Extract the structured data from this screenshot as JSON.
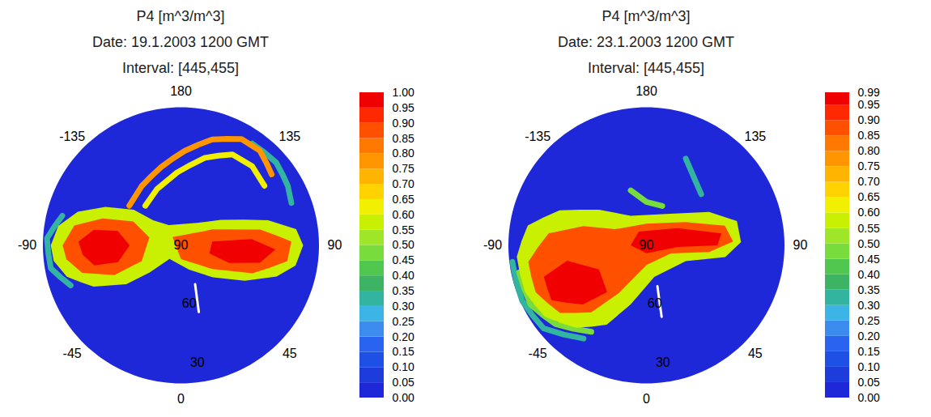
{
  "chart_data": [
    {
      "type": "map",
      "title": "P4 [m^3/m^3]",
      "date": "Date: 19.1.2003 1200 GMT",
      "interval": "Interval: [445,455]",
      "lat_range": [
        20,
        90
      ],
      "lon_labels": [
        180,
        135,
        90,
        45,
        0,
        -45,
        -90,
        -135
      ],
      "lat_labels": [
        90,
        60,
        30
      ],
      "background": 0.02,
      "regions": [
        {
          "value": 0.55,
          "coordinates": [
            [
              -90,
              24
            ],
            [
              -99,
              27
            ],
            [
              -108,
              35
            ],
            [
              -117,
              47
            ],
            [
              -127,
              60
            ],
            [
              -132,
              71
            ],
            [
              -149,
              78
            ],
            [
              144.5,
              76
            ],
            [
              122.6,
              66
            ],
            [
              106,
              44
            ],
            [
              98,
              31
            ],
            [
              90,
              28
            ],
            [
              80,
              31
            ],
            [
              72,
              39
            ],
            [
              61,
              53
            ],
            [
              45,
              67
            ],
            [
              18.4,
              77
            ],
            [
              -40,
              81
            ],
            [
              -49,
              69
            ],
            [
              -54.5,
              56
            ],
            [
              -64.7,
              41
            ],
            [
              -74.6,
              30
            ],
            [
              -83,
              25
            ]
          ]
        },
        {
          "value": 0.85,
          "coordinates": [
            [
              -90,
              30
            ],
            [
              -100.5,
              35
            ],
            [
              -109,
              48
            ],
            [
              -116.6,
              63
            ],
            [
              -104,
              73.5
            ],
            [
              -68,
              68.5
            ],
            [
              -66,
              53
            ],
            [
              -74.4,
              38
            ],
            [
              -83,
              31.5
            ]
          ]
        },
        {
          "value": 0.85,
          "coordinates": [
            [
              -135,
              84
            ],
            [
              116.6,
              72
            ],
            [
              101.3,
              49
            ],
            [
              92,
              34
            ],
            [
              81.6,
              35.5
            ],
            [
              68.7,
              51
            ],
            [
              53,
              70
            ],
            [
              0,
              83
            ]
          ]
        },
        {
          "value": 0.95,
          "coordinates": [
            [
              -92,
              38
            ],
            [
              -100,
              45
            ],
            [
              -103,
              57
            ],
            [
              -90,
              64
            ],
            [
              -75,
              57
            ],
            [
              -77,
              45
            ],
            [
              -84.5,
              40
            ]
          ]
        },
        {
          "value": 0.95,
          "coordinates": [
            [
              97,
              74
            ],
            [
              95,
              54
            ],
            [
              87.6,
              42
            ],
            [
              77.6,
              49
            ],
            [
              70,
              64
            ],
            [
              74,
              75
            ]
          ]
        }
      ],
      "filaments": [
        {
          "value": 0.3,
          "coordinates": [
            [
              -104,
              28
            ],
            [
              -93,
              22
            ],
            [
              -80,
              23
            ],
            [
              -70,
              30.5
            ]
          ]
        },
        {
          "value": 0.3,
          "coordinates": [
            [
              145,
              27
            ],
            [
              131,
              26
            ],
            [
              119,
              28
            ],
            [
              111,
              30
            ]
          ]
        },
        {
          "value": 0.75,
          "coordinates": [
            [
              -127.6,
              57
            ],
            [
              -146.3,
              54
            ],
            [
              -166,
              49
            ],
            [
              177.6,
              42
            ],
            [
              163.5,
              34
            ],
            [
              150.3,
              28
            ],
            [
              140.2,
              27.5
            ],
            [
              128,
              31.6
            ]
          ]
        },
        {
          "value": 0.6,
          "coordinates": [
            [
              -138,
              63
            ],
            [
              -157,
              59
            ],
            [
              -177,
              53
            ],
            [
              164.7,
              44
            ],
            [
              150.5,
              37
            ],
            [
              138,
              36
            ],
            [
              125.5,
              38
            ]
          ]
        }
      ],
      "track": {
        "color": "#ffffff",
        "coordinates": [
          [
            20,
            69
          ],
          [
            15,
            55
          ]
        ]
      },
      "colorbar": {
        "range": [
          0,
          1
        ],
        "ticks": [
          {
            "value": 0,
            "label": "0.00"
          },
          0.05,
          {
            "value": 0.1,
            "label": "0.10"
          },
          0.15,
          {
            "value": 0.2,
            "label": "0.20"
          },
          0.25,
          {
            "value": 0.3,
            "label": "0.30"
          },
          0.35,
          {
            "value": 0.4,
            "label": "0.40"
          },
          0.45,
          {
            "value": 0.5,
            "label": "0.50"
          },
          0.55,
          {
            "value": 0.6,
            "label": "0.60"
          },
          0.65,
          {
            "value": 0.7,
            "label": "0.70"
          },
          0.75,
          {
            "value": 0.8,
            "label": "0.80"
          },
          0.85,
          {
            "value": 0.9,
            "label": "0.90"
          },
          0.95,
          {
            "value": 1,
            "label": "1.00"
          }
        ],
        "colors": [
          "#1e28d8",
          "#1e3cdc",
          "#1e50e6",
          "#2864f0",
          "#3c8cf0",
          "#3cb4e6",
          "#32b4a0",
          "#3cb464",
          "#50c850",
          "#78dc3c",
          "#a0e628",
          "#c8f000",
          "#f0f000",
          "#ffd200",
          "#ffb400",
          "#ff9600",
          "#ff7800",
          "#ff5000",
          "#ff2800",
          "#f00000"
        ]
      }
    },
    {
      "type": "map",
      "title": "P4 [m^3/m^3]",
      "date": "Date: 23.1.2003 1200 GMT",
      "interval": "Interval: [445,455]",
      "lat_range": [
        20,
        90
      ],
      "lon_labels": [
        180,
        135,
        90,
        45,
        0,
        -45,
        -90,
        -135
      ],
      "lat_labels": [
        90,
        60,
        30
      ],
      "background": 0.02,
      "regions": [
        {
          "value": 0.55,
          "coordinates": [
            [
              -85,
              24
            ],
            [
              -99.5,
              29
            ],
            [
              -112,
              42.5
            ],
            [
              -127,
              60
            ],
            [
              -152,
              73
            ],
            [
              143,
              70
            ],
            [
              118,
              54
            ],
            [
              105,
              42.5
            ],
            [
              92,
              42
            ],
            [
              81.5,
              49.6
            ],
            [
              68,
              68.5
            ],
            [
              14,
              73.5
            ],
            [
              -15,
              59
            ],
            [
              -26.6,
              45
            ],
            [
              -40.6,
              35
            ],
            [
              -55,
              27
            ],
            [
              -69,
              24
            ]
          ]
        },
        {
          "value": 0.85,
          "coordinates": [
            [
              -82,
              29.5
            ],
            [
              -97,
              40
            ],
            [
              -107,
              56.5
            ],
            [
              -117,
              72
            ],
            [
              180,
              79
            ],
            [
              121,
              67
            ],
            [
              104,
              49
            ],
            [
              92.6,
              46
            ],
            [
              84,
              58
            ],
            [
              71.6,
              77
            ],
            [
              0,
              80
            ],
            [
              -30,
              62
            ],
            [
              -39.5,
              46
            ],
            [
              -52,
              34.4
            ],
            [
              -67,
              29
            ]
          ]
        },
        {
          "value": 0.95,
          "coordinates": [
            [
              -151,
              82
            ],
            [
              119,
              72
            ],
            [
              99,
              51.5
            ],
            [
              90,
              54
            ],
            [
              87,
              74
            ],
            [
              0,
              86
            ],
            [
              -90,
              82
            ]
          ]
        },
        {
          "value": 0.95,
          "coordinates": [
            [
              -73,
              35.6
            ],
            [
              -79,
              49
            ],
            [
              -63,
              63
            ],
            [
              -40,
              59
            ],
            [
              -47,
              46
            ],
            [
              -60,
              34.4
            ]
          ]
        }
      ],
      "filaments": [
        {
          "value": 0.3,
          "coordinates": [
            [
              -83,
              21.5
            ],
            [
              -66,
              21
            ],
            [
              -51,
              23
            ],
            [
              -34,
              33
            ]
          ]
        },
        {
          "value": 0.45,
          "coordinates": [
            [
              -78,
              24
            ],
            [
              -63,
              24
            ],
            [
              -49,
              29
            ],
            [
              -32.5,
              38
            ]
          ]
        },
        {
          "value": 0.3,
          "coordinates": [
            [
              155.6,
              41.7
            ],
            [
              145,
              48
            ],
            [
              133,
              52
            ]
          ]
        },
        {
          "value": 0.45,
          "coordinates": [
            [
              -164,
              61
            ],
            [
              180,
              68
            ],
            [
              158,
              68.5
            ]
          ]
        }
      ],
      "track": {
        "color": "#ffffff",
        "coordinates": [
          [
            15,
            68.5
          ],
          [
            12,
            53
          ]
        ]
      },
      "colorbar": {
        "range": [
          0,
          0.99
        ],
        "ticks": [
          {
            "value": 0,
            "label": "0.00"
          },
          0.05,
          {
            "value": 0.1,
            "label": "0.10"
          },
          0.15,
          {
            "value": 0.2,
            "label": "0.20"
          },
          0.25,
          {
            "value": 0.3,
            "label": "0.30"
          },
          0.35,
          {
            "value": 0.4,
            "label": "0.40"
          },
          0.45,
          {
            "value": 0.5,
            "label": "0.50"
          },
          0.55,
          {
            "value": 0.6,
            "label": "0.60"
          },
          0.65,
          {
            "value": 0.7,
            "label": "0.70"
          },
          0.75,
          {
            "value": 0.8,
            "label": "0.80"
          },
          0.85,
          {
            "value": 0.9,
            "label": "0.90"
          },
          0.95,
          0.99
        ],
        "colors": [
          "#1e28d8",
          "#1e3cdc",
          "#1e50e6",
          "#2864f0",
          "#3c8cf0",
          "#3cb4e6",
          "#32b4a0",
          "#3cb464",
          "#50c850",
          "#78dc3c",
          "#a0e628",
          "#c8f000",
          "#f0f000",
          "#ffd200",
          "#ffb400",
          "#ff9600",
          "#ff7800",
          "#ff5000",
          "#ff2800",
          "#f00000"
        ]
      }
    }
  ]
}
